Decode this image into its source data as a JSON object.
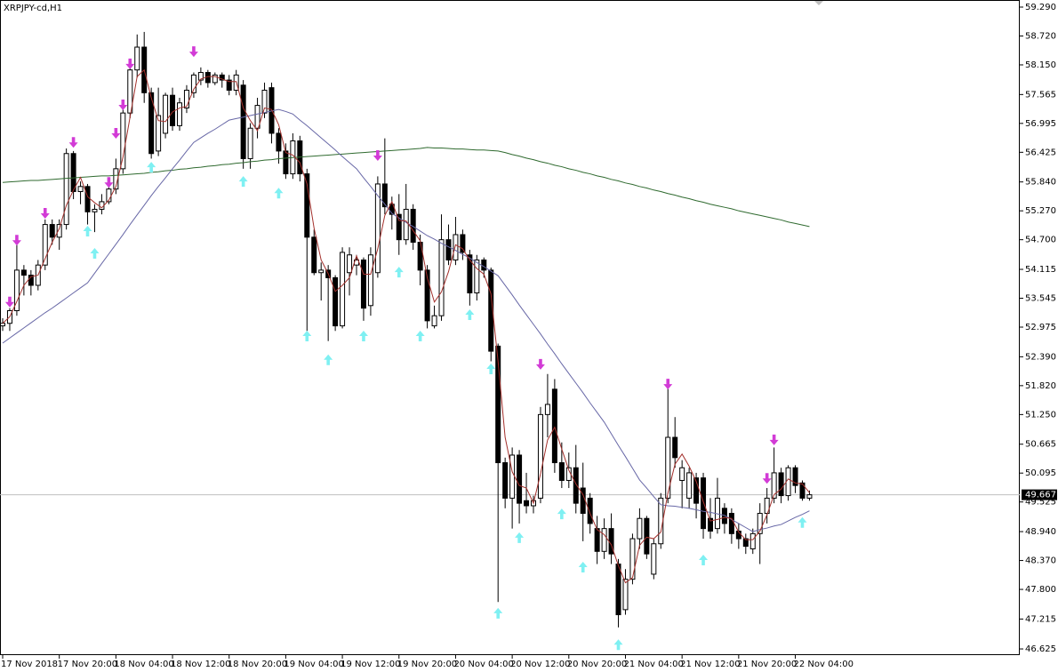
{
  "chart_data": {
    "type": "candlestick",
    "title": "XRPJPY-cd,H1",
    "categories": [
      "17 Nov 2018",
      null,
      null,
      null,
      null,
      null,
      null,
      null,
      "17 Nov 20:00",
      null,
      null,
      null,
      null,
      null,
      null,
      null,
      "18 Nov 04:00",
      null,
      null,
      null,
      null,
      null,
      null,
      null,
      "18 Nov 12:00",
      null,
      null,
      null,
      null,
      null,
      null,
      null,
      "18 Nov 20:00",
      null,
      null,
      null,
      null,
      null,
      null,
      null,
      "19 Nov 04:00",
      null,
      null,
      null,
      null,
      null,
      null,
      null,
      "19 Nov 12:00",
      null,
      null,
      null,
      null,
      null,
      null,
      null,
      "19 Nov 20:00",
      null,
      null,
      null,
      null,
      null,
      null,
      null,
      "20 Nov 04:00",
      null,
      null,
      null,
      null,
      null,
      null,
      null,
      "20 Nov 12:00",
      null,
      null,
      null,
      null,
      null,
      null,
      null,
      "20 Nov 20:00",
      null,
      null,
      null,
      null,
      null,
      null,
      null,
      "21 Nov 04:00",
      null,
      null,
      null,
      null,
      null,
      null,
      null,
      "21 Nov 12:00",
      null,
      null,
      null,
      null,
      null,
      null,
      null,
      "21 Nov 20:00",
      null,
      null,
      null,
      null,
      null,
      null,
      null,
      "22 Nov 04:00",
      null,
      null
    ],
    "open": [
      53.0,
      53.05,
      53.3,
      54.1,
      54.0,
      53.8,
      54.2,
      55.0,
      54.75,
      55.0,
      56.4,
      55.65,
      55.75,
      55.25,
      55.3,
      55.45,
      55.7,
      56.1,
      57.2,
      58.05,
      58.5,
      57.6,
      56.45,
      56.8,
      57.55,
      56.95,
      57.3,
      57.6,
      57.85,
      58.0,
      57.8,
      57.95,
      57.85,
      57.65,
      57.75,
      56.3,
      56.9,
      57.2,
      57.7,
      56.8,
      56.45,
      56.0,
      56.65,
      56.0,
      54.75,
      54.05,
      54.1,
      53.95,
      53.0,
      54.05,
      54.2,
      54.3,
      53.4,
      54.05,
      55.8,
      55.4,
      55.2,
      54.7,
      55.3,
      54.65,
      54.1,
      53.0,
      53.2,
      54.7,
      54.3,
      54.8,
      54.4,
      53.65,
      54.3,
      54.1,
      52.6,
      50.3,
      49.6,
      50.45,
      49.55,
      49.45,
      49.6,
      51.25,
      51.75,
      50.3,
      49.95,
      50.2,
      49.8,
      49.6,
      49.0,
      48.55,
      49.0,
      48.3,
      47.4,
      48.0,
      48.8,
      49.2,
      48.1,
      48.7,
      49.6,
      50.8,
      49.95,
      49.6,
      50.0,
      50.0,
      49.2,
      49.0,
      49.4,
      49.3,
      48.95,
      48.8,
      48.6,
      48.9,
      49.3,
      49.6,
      50.1,
      49.65,
      50.2,
      49.9,
      49.6
    ],
    "high": [
      53.15,
      53.35,
      54.7,
      54.2,
      54.1,
      54.3,
      55.1,
      55.1,
      55.1,
      56.5,
      56.45,
      55.85,
      55.8,
      55.4,
      55.6,
      55.85,
      56.3,
      57.35,
      58.2,
      58.75,
      58.8,
      57.7,
      57.7,
      57.6,
      57.7,
      57.5,
      57.75,
      58.0,
      58.1,
      58.05,
      58.0,
      58.0,
      57.95,
      58.05,
      57.85,
      57.0,
      57.5,
      57.8,
      57.8,
      56.9,
      56.6,
      56.8,
      56.75,
      56.1,
      54.9,
      54.25,
      54.2,
      54.0,
      54.55,
      54.55,
      54.4,
      54.35,
      54.55,
      55.95,
      56.7,
      55.55,
      55.6,
      55.8,
      55.4,
      54.8,
      54.2,
      53.4,
      55.2,
      55.0,
      55.15,
      54.9,
      54.5,
      54.4,
      54.35,
      54.15,
      52.65,
      50.4,
      50.6,
      50.55,
      50.1,
      49.65,
      51.4,
      52.05,
      51.95,
      50.7,
      50.5,
      50.65,
      50.3,
      49.7,
      49.25,
      49.2,
      49.3,
      48.4,
      48.2,
      48.9,
      49.4,
      49.25,
      48.8,
      49.7,
      51.8,
      51.2,
      50.35,
      50.2,
      50.1,
      50.1,
      49.6,
      50.0,
      49.5,
      49.4,
      49.1,
      48.9,
      49.0,
      49.5,
      49.8,
      50.6,
      50.2,
      50.25,
      50.25,
      49.95,
      49.75
    ],
    "low": [
      52.9,
      52.9,
      53.2,
      53.6,
      53.6,
      53.7,
      54.1,
      54.6,
      54.5,
      54.9,
      55.5,
      55.4,
      55.0,
      54.85,
      55.2,
      55.4,
      55.6,
      56.0,
      57.1,
      57.9,
      57.4,
      56.3,
      56.35,
      56.7,
      56.85,
      56.85,
      57.2,
      57.5,
      57.75,
      57.7,
      57.75,
      57.7,
      57.55,
      57.55,
      56.1,
      56.1,
      56.7,
      57.1,
      56.6,
      56.2,
      55.9,
      55.9,
      55.85,
      52.9,
      54.0,
      53.5,
      52.7,
      52.9,
      52.95,
      53.6,
      54.0,
      53.1,
      53.2,
      53.95,
      55.2,
      54.9,
      54.4,
      54.6,
      54.5,
      53.8,
      52.95,
      52.95,
      53.1,
      54.2,
      54.2,
      54.3,
      53.4,
      53.5,
      53.95,
      52.3,
      47.55,
      49.4,
      49.0,
      49.1,
      49.3,
      49.3,
      49.5,
      50.8,
      50.1,
      49.8,
      49.8,
      49.3,
      48.75,
      48.9,
      48.3,
      48.4,
      48.3,
      47.05,
      47.3,
      47.9,
      48.6,
      48.4,
      48.0,
      48.6,
      49.5,
      50.2,
      49.4,
      49.4,
      49.2,
      48.8,
      48.8,
      48.9,
      48.9,
      48.7,
      48.6,
      48.5,
      48.5,
      48.3,
      49.1,
      49.5,
      49.5,
      49.55,
      49.7,
      49.55,
      49.55
    ],
    "close": [
      53.05,
      53.3,
      54.1,
      54.0,
      53.8,
      54.2,
      55.0,
      54.75,
      55.0,
      56.4,
      55.65,
      55.75,
      55.25,
      55.3,
      55.45,
      55.7,
      56.1,
      57.2,
      58.05,
      58.5,
      57.6,
      56.4,
      57.15,
      57.55,
      56.95,
      57.4,
      57.65,
      57.95,
      58.0,
      57.8,
      57.95,
      57.85,
      57.65,
      57.95,
      56.3,
      56.9,
      57.35,
      57.65,
      56.8,
      56.45,
      56.0,
      56.65,
      56.0,
      54.75,
      54.05,
      54.1,
      53.95,
      53.0,
      54.45,
      54.4,
      54.3,
      53.35,
      54.4,
      55.8,
      55.35,
      55.2,
      54.7,
      55.3,
      54.65,
      54.1,
      53.1,
      53.2,
      54.7,
      54.3,
      54.8,
      54.45,
      53.65,
      54.3,
      54.1,
      52.5,
      50.3,
      49.6,
      50.45,
      49.5,
      49.45,
      49.55,
      51.25,
      51.45,
      50.3,
      49.95,
      50.2,
      49.5,
      49.3,
      49.1,
      48.55,
      49.0,
      48.5,
      47.3,
      48.0,
      48.8,
      49.2,
      48.5,
      48.7,
      49.6,
      50.8,
      50.4,
      50.2,
      50.1,
      49.5,
      49.0,
      48.95,
      49.6,
      49.1,
      48.9,
      48.8,
      48.65,
      48.9,
      49.3,
      49.6,
      50.1,
      49.65,
      50.2,
      49.85,
      49.6,
      49.667
    ],
    "series": [
      {
        "color": "#2f6a2f",
        "values": [
          55.83,
          55.84,
          55.85,
          55.86,
          55.87,
          55.87,
          55.88,
          55.89,
          55.9,
          55.91,
          55.92,
          55.93,
          55.94,
          55.95,
          55.96,
          55.96,
          55.97,
          55.98,
          55.99,
          56.0,
          56.01,
          56.03,
          56.04,
          56.06,
          56.07,
          56.09,
          56.1,
          56.12,
          56.13,
          56.15,
          56.16,
          56.18,
          56.19,
          56.21,
          56.22,
          56.24,
          56.25,
          56.27,
          56.28,
          56.3,
          56.31,
          56.32,
          56.33,
          56.34,
          56.35,
          56.36,
          56.37,
          56.38,
          56.39,
          56.4,
          56.41,
          56.42,
          56.43,
          56.44,
          56.45,
          56.46,
          56.47,
          56.48,
          56.49,
          56.5,
          56.52,
          56.51,
          56.51,
          56.5,
          56.49,
          56.49,
          56.48,
          56.47,
          56.47,
          56.46,
          56.45,
          56.42,
          56.38,
          56.35,
          56.31,
          56.28,
          56.24,
          56.21,
          56.17,
          56.14,
          56.1,
          56.07,
          56.03,
          56.0,
          55.96,
          55.93,
          55.89,
          55.86,
          55.82,
          55.79,
          55.75,
          55.72,
          55.68,
          55.65,
          55.61,
          55.58,
          55.54,
          55.51,
          55.47,
          55.44,
          55.4,
          55.37,
          55.34,
          55.31,
          55.27,
          55.24,
          55.21,
          55.18,
          55.15,
          55.12,
          55.09,
          55.05,
          55.02,
          54.99,
          54.96
        ]
      },
      {
        "color": "#6767a6",
        "values": [
          52.66,
          52.76,
          52.86,
          52.96,
          53.06,
          53.16,
          53.26,
          53.35,
          53.45,
          53.55,
          53.65,
          53.75,
          53.85,
          54.04,
          54.23,
          54.42,
          54.61,
          54.8,
          55.0,
          55.19,
          55.38,
          55.57,
          55.75,
          55.92,
          56.1,
          56.27,
          56.45,
          56.62,
          56.71,
          56.8,
          56.88,
          56.97,
          57.06,
          57.09,
          57.12,
          57.15,
          57.18,
          57.21,
          57.24,
          57.27,
          57.23,
          57.18,
          57.06,
          56.95,
          56.83,
          56.71,
          56.59,
          56.47,
          56.34,
          56.22,
          56.1,
          55.92,
          55.75,
          55.57,
          55.4,
          55.22,
          55.13,
          55.04,
          54.96,
          54.87,
          54.78,
          54.71,
          54.63,
          54.56,
          54.49,
          54.41,
          54.34,
          54.25,
          54.17,
          54.08,
          53.99,
          53.8,
          53.61,
          53.41,
          53.22,
          53.03,
          52.84,
          52.64,
          52.45,
          52.25,
          52.06,
          51.87,
          51.68,
          51.48,
          51.29,
          51.1,
          50.87,
          50.64,
          50.42,
          50.19,
          49.96,
          49.8,
          49.63,
          49.47,
          49.45,
          49.44,
          49.42,
          49.4,
          49.37,
          49.34,
          49.32,
          49.29,
          49.26,
          49.18,
          49.1,
          49.02,
          48.94,
          48.98,
          49.01,
          49.05,
          49.08,
          49.15,
          49.22,
          49.28,
          49.35
        ]
      },
      {
        "color": "#a3302c",
        "values": [
          53.05,
          53.18,
          53.48,
          53.8,
          53.97,
          54.0,
          54.33,
          54.65,
          54.92,
          55.38,
          55.68,
          55.93,
          55.55,
          55.43,
          55.33,
          55.48,
          55.75,
          56.33,
          57.12,
          57.92,
          58.05,
          57.5,
          57.05,
          57.03,
          57.22,
          57.3,
          57.33,
          57.67,
          57.87,
          57.92,
          57.92,
          57.87,
          57.82,
          57.82,
          57.3,
          57.05,
          56.85,
          57.3,
          57.27,
          56.97,
          56.42,
          56.37,
          56.22,
          55.8,
          54.93,
          54.3,
          54.03,
          53.68,
          53.8,
          53.95,
          54.38,
          54.02,
          54.02,
          54.52,
          55.18,
          55.45,
          55.08,
          55.07,
          54.88,
          54.68,
          53.95,
          53.47,
          53.67,
          54.07,
          54.6,
          54.52,
          54.3,
          54.13,
          54.02,
          53.63,
          52.3,
          50.8,
          50.12,
          49.85,
          49.8,
          49.5,
          50.08,
          50.75,
          51.0,
          50.57,
          50.15,
          49.88,
          49.67,
          49.3,
          48.98,
          48.88,
          48.68,
          48.27,
          47.93,
          48.03,
          48.67,
          48.83,
          48.8,
          48.93,
          49.7,
          50.27,
          50.47,
          50.23,
          49.93,
          49.53,
          49.15,
          49.18,
          49.22,
          49.2,
          48.93,
          48.78,
          48.78,
          48.95,
          49.27,
          49.67,
          49.78,
          49.98,
          49.9,
          49.88,
          49.71
        ]
      }
    ],
    "signals_down": {
      "color": "#d23bd6",
      "values": [
        null,
        53.47,
        54.69,
        null,
        null,
        null,
        55.22,
        null,
        null,
        null,
        56.62,
        null,
        null,
        null,
        null,
        55.83,
        56.8,
        57.36,
        58.17,
        null,
        null,
        null,
        null,
        null,
        null,
        null,
        null,
        58.41,
        null,
        null,
        null,
        null,
        null,
        null,
        null,
        null,
        null,
        null,
        null,
        null,
        null,
        null,
        null,
        null,
        null,
        null,
        null,
        null,
        null,
        null,
        null,
        null,
        null,
        56.36,
        null,
        null,
        null,
        null,
        null,
        null,
        null,
        null,
        null,
        null,
        null,
        null,
        null,
        null,
        null,
        null,
        null,
        null,
        null,
        null,
        null,
        null,
        52.24,
        null,
        null,
        null,
        null,
        null,
        null,
        null,
        null,
        null,
        null,
        null,
        null,
        null,
        null,
        null,
        null,
        null,
        51.85,
        null,
        null,
        null,
        null,
        null,
        null,
        null,
        null,
        null,
        null,
        null,
        null,
        null,
        49.99,
        50.75,
        null,
        null,
        null,
        null,
        null
      ]
    },
    "signals_up": {
      "color": "#7ff0f2",
      "values": [
        null,
        null,
        null,
        null,
        null,
        null,
        null,
        null,
        null,
        null,
        null,
        null,
        54.87,
        54.43,
        null,
        null,
        null,
        null,
        null,
        null,
        null,
        56.13,
        null,
        null,
        null,
        null,
        null,
        null,
        null,
        null,
        null,
        null,
        null,
        null,
        55.85,
        null,
        null,
        null,
        null,
        55.62,
        null,
        null,
        null,
        52.8,
        null,
        null,
        52.33,
        null,
        null,
        null,
        null,
        52.8,
        null,
        null,
        null,
        null,
        54.06,
        null,
        null,
        52.8,
        null,
        null,
        null,
        null,
        null,
        null,
        53.22,
        null,
        null,
        52.15,
        47.33,
        null,
        null,
        48.82,
        null,
        null,
        null,
        null,
        null,
        49.29,
        null,
        null,
        48.24,
        null,
        null,
        null,
        null,
        46.71,
        null,
        null,
        null,
        null,
        null,
        null,
        null,
        null,
        null,
        null,
        null,
        48.38,
        null,
        null,
        null,
        null,
        null,
        null,
        null,
        null,
        null,
        null,
        null,
        null,
        null,
        49.12,
        null
      ]
    },
    "ylim": [
      46.503,
      59.43
    ],
    "yticks": [
      {
        "value": 59.29,
        "label": "59.290"
      },
      {
        "value": 58.72,
        "label": "58.720"
      },
      {
        "value": 58.15,
        "label": "58.150"
      },
      57.565,
      56.995,
      56.425,
      {
        "value": 55.84,
        "label": "55.840"
      },
      {
        "value": 55.27,
        "label": "55.270"
      },
      {
        "value": 54.7,
        "label": "54.700"
      },
      54.115,
      53.545,
      52.975,
      {
        "value": 52.39,
        "label": "52.390"
      },
      {
        "value": 51.82,
        "label": "51.820"
      },
      {
        "value": 51.25,
        "label": "51.250"
      },
      50.665,
      50.095,
      49.525,
      {
        "value": 48.94,
        "label": "48.940"
      },
      {
        "value": 48.37,
        "label": "48.370"
      },
      {
        "value": 47.8,
        "label": "47.800"
      },
      47.215,
      46.625
    ],
    "grid": false
  }
}
